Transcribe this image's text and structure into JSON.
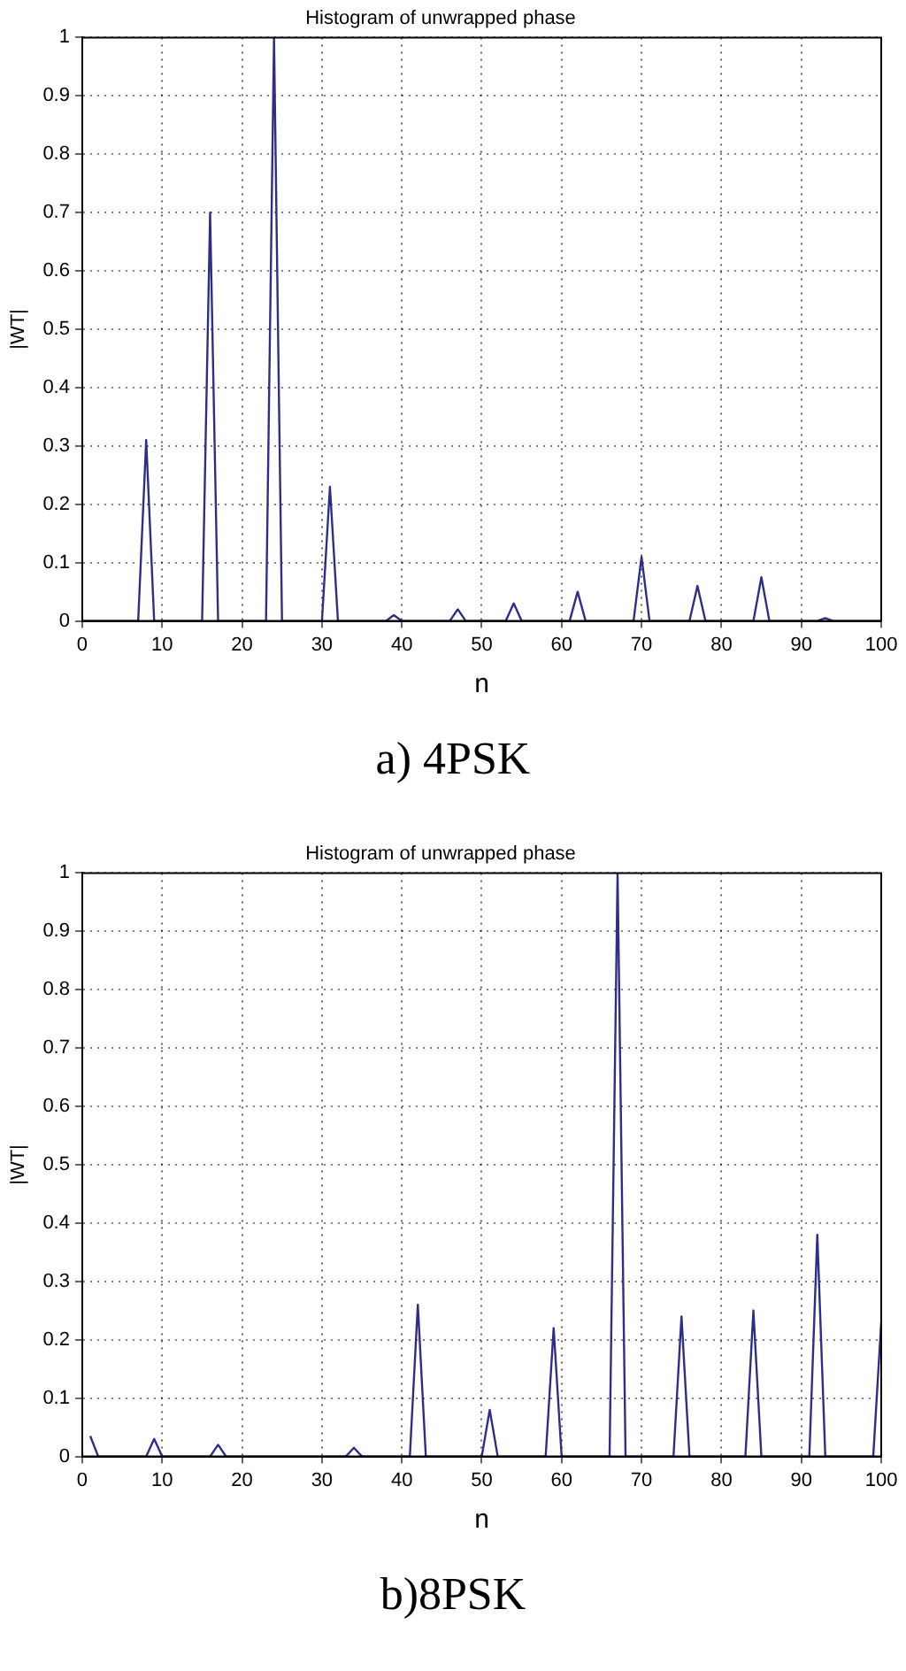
{
  "chart_data": [
    {
      "type": "line",
      "title": "Histogram of unwrapped phase",
      "xlabel": "n",
      "ylabel": "|WT|",
      "annotations": [
        "a) 4PSK"
      ],
      "x": [
        0,
        7,
        8,
        9,
        15,
        16,
        17,
        23,
        24,
        25,
        30,
        31,
        32,
        38,
        39,
        40,
        46,
        47,
        48,
        53,
        54,
        55,
        61,
        62,
        63,
        69,
        70,
        71,
        76,
        77,
        78,
        84,
        85,
        86,
        92,
        93,
        94,
        100
      ],
      "series": [
        {
          "color": "#2e2e8a",
          "values": [
            0,
            0,
            0.31,
            0,
            0,
            0.7,
            0,
            0,
            1,
            0,
            0,
            0.23,
            0,
            0,
            0.01,
            0,
            0,
            0.02,
            0,
            0,
            0.03,
            0,
            0,
            0.05,
            0,
            0,
            0.11,
            0,
            0,
            0.06,
            0,
            0,
            0.075,
            0,
            0,
            0.005,
            0,
            0
          ]
        }
      ],
      "xlim": [
        0,
        100
      ],
      "xticks": [
        0,
        10,
        20,
        30,
        40,
        50,
        60,
        70,
        80,
        90,
        100
      ],
      "ylim": [
        0,
        1
      ],
      "yticks": [
        0,
        0.1,
        0.2,
        0.3,
        0.4,
        0.5,
        0.6,
        0.7,
        0.8,
        0.9,
        1
      ],
      "grid": true,
      "legend": false,
      "marker": "none",
      "line_style": "solid"
    },
    {
      "type": "line",
      "title": "Histogram of unwrapped phase",
      "xlabel": "n",
      "ylabel": "|WT|",
      "annotations": [
        "b)8PSK"
      ],
      "x": [
        1,
        2,
        8,
        9,
        10,
        16,
        17,
        18,
        33,
        34,
        35,
        41,
        42,
        43,
        50,
        51,
        52,
        58,
        59,
        60,
        66,
        67,
        68,
        74,
        75,
        76,
        83,
        84,
        85,
        91,
        92,
        93,
        99,
        100
      ],
      "series": [
        {
          "color": "#2e2e8a",
          "values": [
            0.035,
            0,
            0,
            0.03,
            0,
            0,
            0.02,
            0,
            0,
            0.015,
            0,
            0,
            0.26,
            0,
            0,
            0.08,
            0,
            0,
            0.22,
            0,
            0,
            1,
            0,
            0,
            0.24,
            0,
            0,
            0.25,
            0,
            0,
            0.38,
            0,
            0,
            0.23
          ]
        }
      ],
      "xlim": [
        0,
        100
      ],
      "xticks": [
        0,
        10,
        20,
        30,
        40,
        50,
        60,
        70,
        80,
        90,
        100
      ],
      "ylim": [
        0,
        1
      ],
      "yticks": [
        0,
        0.1,
        0.2,
        0.3,
        0.4,
        0.5,
        0.6,
        0.7,
        0.8,
        0.9,
        1
      ],
      "grid": true,
      "legend": false,
      "marker": "none",
      "line_style": "solid"
    }
  ]
}
